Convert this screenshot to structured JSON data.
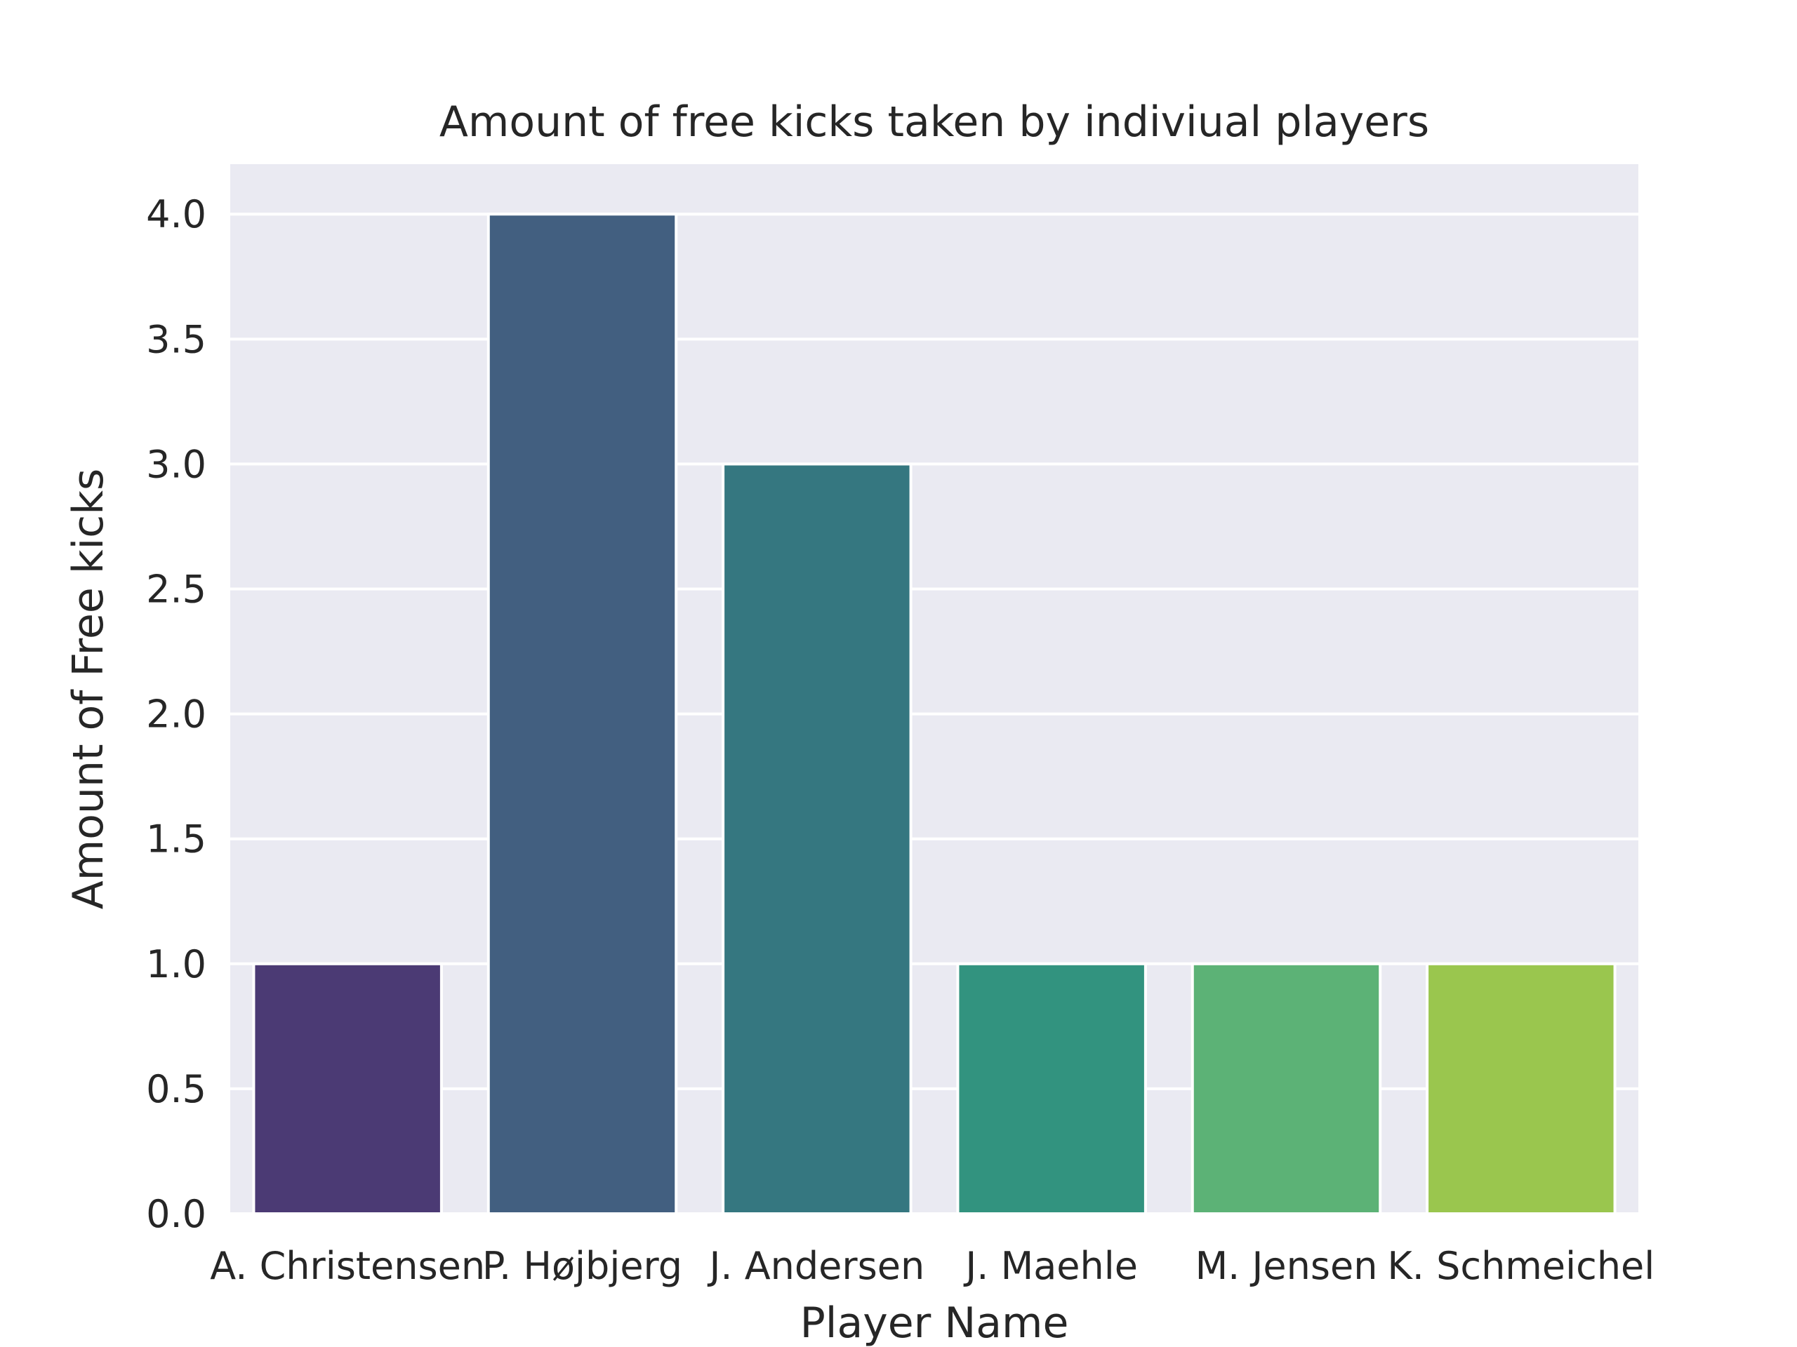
{
  "chart_data": {
    "type": "bar",
    "title": "Amount of free kicks taken by indiviual players",
    "xlabel": "Player Name",
    "ylabel": "Amount of Free kicks",
    "categories": [
      "A. Christensen",
      "P. Højbjerg",
      "J. Andersen",
      "J. Maehle",
      "M. Jensen",
      "K. Schmeichel"
    ],
    "values": [
      1,
      4,
      3,
      1,
      1,
      1
    ],
    "colors": [
      "#4b3a74",
      "#425f80",
      "#357780",
      "#32937f",
      "#5cb276",
      "#9ac64e"
    ],
    "yticks": [
      "0.0",
      "0.5",
      "1.0",
      "1.5",
      "2.0",
      "2.5",
      "3.0",
      "3.5",
      "4.0"
    ],
    "ylim": [
      0,
      4.2
    ],
    "grid": true,
    "plot_background": "#eaeaf2",
    "grid_color": "#ffffff"
  }
}
